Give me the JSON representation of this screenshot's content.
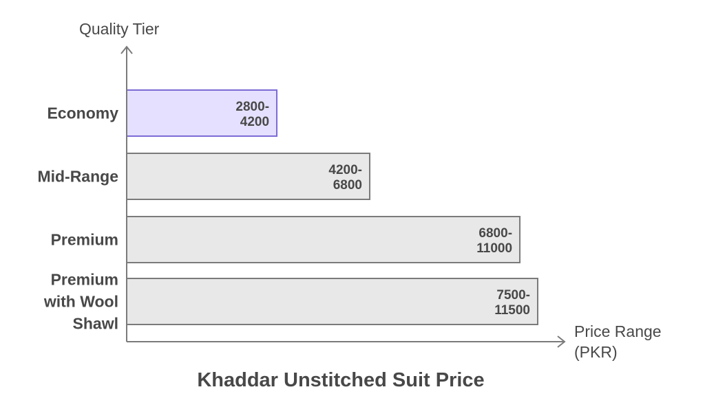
{
  "chart_data": {
    "type": "bar",
    "orientation": "horizontal",
    "title": "Khaddar Unstitched Suit Price",
    "ylabel": "Quality Tier",
    "xlabel": [
      "Price Range",
      "(PKR)"
    ],
    "categories": [
      "Economy",
      "Mid-Range",
      "Premium",
      [
        "Premium",
        "with Wool",
        "Shawl"
      ]
    ],
    "ranges": [
      [
        2800,
        4200
      ],
      [
        4200,
        6800
      ],
      [
        6800,
        11000
      ],
      [
        7500,
        11500
      ]
    ],
    "data_labels": [
      [
        "2800-",
        "4200"
      ],
      [
        "4200-",
        "6800"
      ],
      [
        "6800-",
        "11000"
      ],
      [
        "7500-",
        "11500"
      ]
    ],
    "highlight_index": 0,
    "colors": {
      "highlight_fill": "#e5e0ff",
      "highlight_stroke": "#7b6ad6",
      "bar_fill": "#e8e8e8",
      "bar_stroke": "#7a7a7a",
      "axis": "#7a7a7a",
      "text": "#484848"
    },
    "grid": false,
    "legend": "none"
  }
}
